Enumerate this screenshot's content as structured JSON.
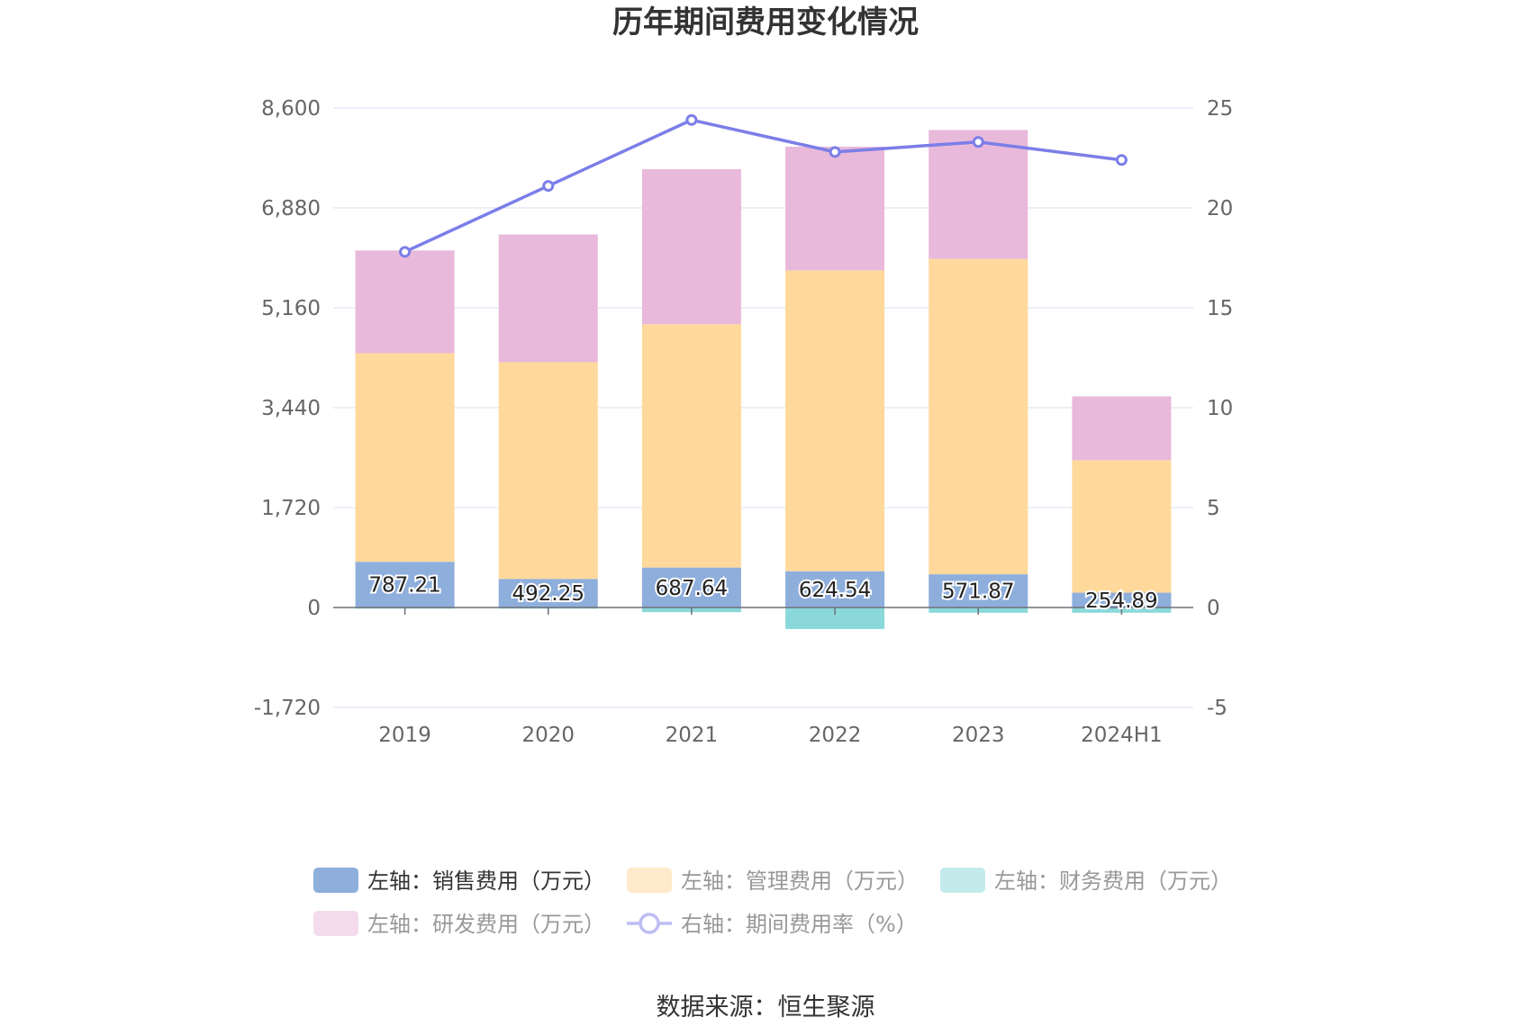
{
  "chart_data": {
    "type": "bar",
    "title": "历年期间费用变化情况",
    "categories": [
      "2019",
      "2020",
      "2021",
      "2022",
      "2023",
      "2024H1"
    ],
    "y_left": {
      "ticks": [
        "8,600",
        "6,880",
        "5,160",
        "3,440",
        "1,720",
        "0",
        "-1,720"
      ],
      "min": -1720,
      "max": 8600
    },
    "y_right": {
      "ticks": [
        "25",
        "20",
        "15",
        "10",
        "5",
        "0",
        "-5"
      ],
      "min": -5,
      "max": 25
    },
    "series": [
      {
        "name": "左轴：销售费用（万元）",
        "kind": "bar",
        "axis": "left",
        "color": "#8eaedc",
        "values": [
          787.21,
          492.25,
          687.64,
          624.54,
          571.87,
          254.89
        ],
        "labels": [
          "787.21",
          "492.25",
          "687.64",
          "624.54",
          "571.87",
          "254.89"
        ]
      },
      {
        "name": "左轴：管理费用（万元）",
        "kind": "bar",
        "axis": "left",
        "color": "#ffd99b",
        "values": [
          3590,
          3730,
          4190,
          5180,
          5430,
          2280
        ]
      },
      {
        "name": "左轴：财务费用（万元）",
        "kind": "bar",
        "axis": "left",
        "color": "#8ad8da",
        "values": [
          -20,
          -20,
          -80,
          -370,
          -90,
          -90
        ]
      },
      {
        "name": "左轴：研发费用（万元）",
        "kind": "bar",
        "axis": "left",
        "color": "#e8b9da",
        "values": [
          1770,
          2200,
          2670,
          2130,
          2220,
          1100
        ]
      },
      {
        "name": "右轴：期间费用率（%）",
        "kind": "line",
        "axis": "right",
        "color": "#7b7ee8",
        "values": [
          17.8,
          21.1,
          24.4,
          22.8,
          23.3,
          22.4
        ]
      }
    ],
    "grid": true,
    "legend_position": "bottom"
  },
  "source_text": "数据来源：恒生聚源"
}
